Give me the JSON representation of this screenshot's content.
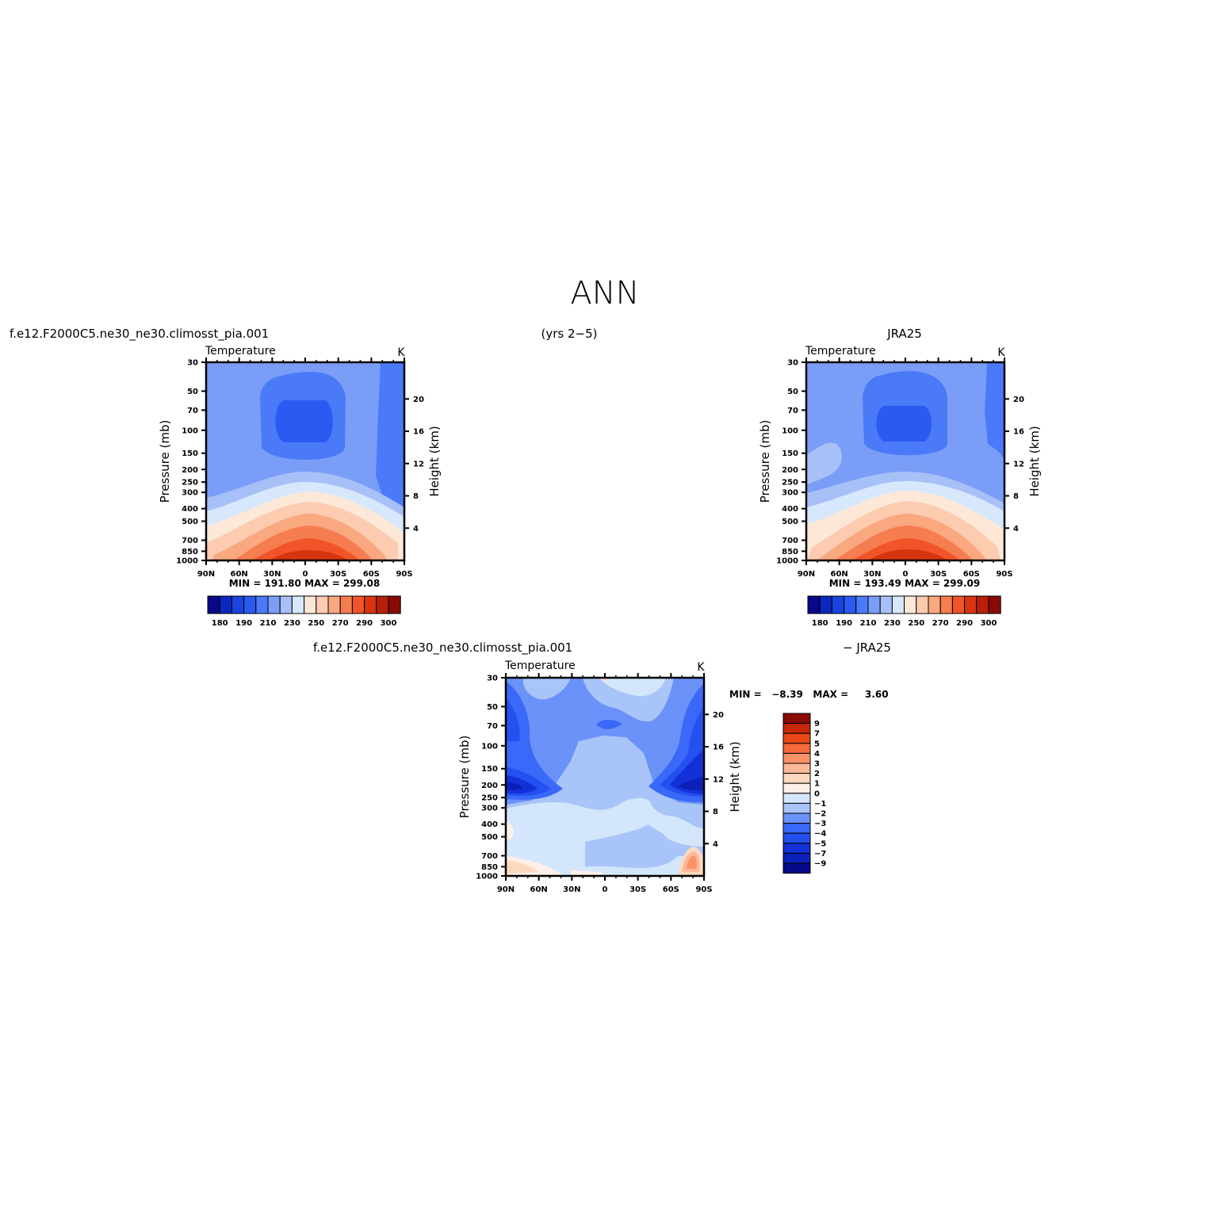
{
  "figure": {
    "title": "ANN",
    "header_left": "f.e12.F2000C5.ne30_ne30.climosst_pia.001",
    "header_center": "(yrs 2−5)",
    "header_right": "JRA25",
    "diff_header_left": "f.e12.F2000C5.ne30_ne30.climosst_pia.001",
    "diff_header_right": "− JRA25"
  },
  "colors": {
    "temp_palette": [
      "#08088a",
      "#0a28c0",
      "#1a44e0",
      "#2a5af0",
      "#4a7af8",
      "#7a9ef8",
      "#a8c0f8",
      "#d8e8fc",
      "#fde8d8",
      "#fccbb0",
      "#f9a880",
      "#f67d50",
      "#f05428",
      "#d83410",
      "#b82008",
      "#8a0a05"
    ],
    "diff_palette": [
      "#08088a",
      "#0a20b8",
      "#1430d8",
      "#2450f0",
      "#3a68f8",
      "#6a92f8",
      "#a8c4f8",
      "#d4e6fc",
      "#fdf0e8",
      "#fdd8c0",
      "#fcb898",
      "#fa9268",
      "#f46a3a",
      "#e84818",
      "#c82808",
      "#8a0a05"
    ]
  },
  "chart_data": [
    {
      "type": "contour",
      "name": "model",
      "subtitle": "Temperature",
      "units": "K",
      "ylabel": "Pressure (mb)",
      "y2label": "Height (km)",
      "xticks": [
        "90N",
        "60N",
        "30N",
        "0",
        "30S",
        "60S",
        "90S"
      ],
      "yticks": [
        "30",
        "50",
        "70",
        "100",
        "150",
        "200",
        "250",
        "300",
        "400",
        "500",
        "700",
        "850",
        "1000"
      ],
      "y2ticks": [
        "20",
        "16",
        "12",
        "8",
        "4"
      ],
      "levels_labels": [
        "180",
        "190",
        "210",
        "230",
        "250",
        "270",
        "290",
        "300"
      ],
      "stats": "MIN =  191.80   MAX =  299.08",
      "min": 191.8,
      "max": 299.08
    },
    {
      "type": "contour",
      "name": "obs",
      "subtitle": "Temperature",
      "units": "K",
      "ylabel": "Pressure (mb)",
      "y2label": "Height (km)",
      "xticks": [
        "90N",
        "60N",
        "30N",
        "0",
        "30S",
        "60S",
        "90S"
      ],
      "yticks": [
        "30",
        "50",
        "70",
        "100",
        "150",
        "200",
        "250",
        "300",
        "400",
        "500",
        "700",
        "850",
        "1000"
      ],
      "y2ticks": [
        "20",
        "16",
        "12",
        "8",
        "4"
      ],
      "levels_labels": [
        "180",
        "190",
        "210",
        "230",
        "250",
        "270",
        "290",
        "300"
      ],
      "stats": "MIN =  193.49   MAX =  299.09",
      "min": 193.49,
      "max": 299.09
    },
    {
      "type": "contour",
      "name": "difference",
      "subtitle": "Temperature",
      "units": "K",
      "ylabel": "Pressure (mb)",
      "y2label": "Height (km)",
      "xticks": [
        "90N",
        "60N",
        "30N",
        "0",
        "30S",
        "60S",
        "90S"
      ],
      "yticks": [
        "30",
        "50",
        "70",
        "100",
        "150",
        "200",
        "250",
        "300",
        "400",
        "500",
        "700",
        "850",
        "1000"
      ],
      "y2ticks": [
        "20",
        "16",
        "12",
        "8",
        "4"
      ],
      "levels_labels": [
        "9",
        "7",
        "5",
        "4",
        "3",
        "2",
        "1",
        "0",
        "−1",
        "−2",
        "−3",
        "−4",
        "−5",
        "−7",
        "−9"
      ],
      "stats": "MIN =   −8.39   MAX =     3.60",
      "min": -8.39,
      "max": 3.6
    }
  ]
}
